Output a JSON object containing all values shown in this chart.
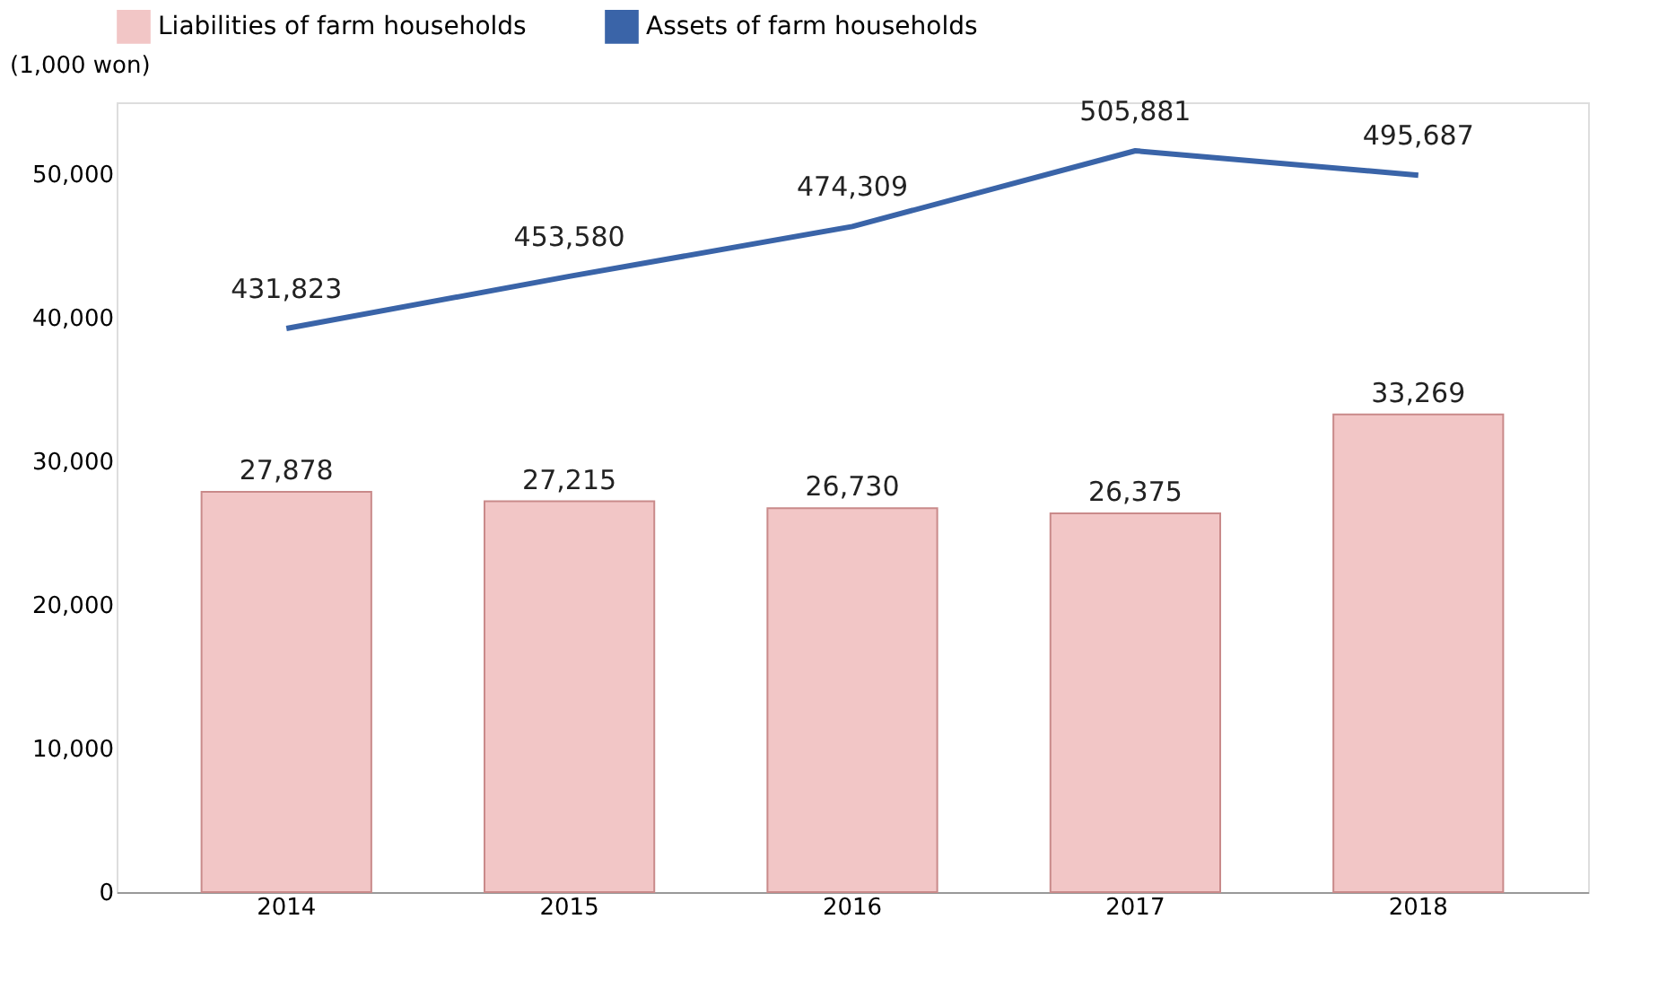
{
  "chart_data": {
    "type": "bar",
    "ylabel": "(1,000 won)",
    "categories": [
      "2014",
      "2015",
      "2016",
      "2017",
      "2018"
    ],
    "series": [
      {
        "name": "Liabilities of farm households",
        "color": "#f2c6c6",
        "values": [
          27878,
          27215,
          26730,
          26375,
          33269
        ],
        "value_labels": [
          "27,878",
          "27,215",
          "26,730",
          "26,375",
          "33,269"
        ]
      },
      {
        "name": "Assets of farm households",
        "type": "line",
        "axis": "y2",
        "color": "#3a64a8",
        "values": [
          431823,
          453580,
          474309,
          505881,
          495687
        ],
        "value_labels": [
          "431,823",
          "453,580",
          "474,309",
          "505,881",
          "495,687"
        ]
      }
    ],
    "ylim": [
      0,
      55000
    ],
    "yticks": [
      0,
      {
        "value": 10000,
        "label": "10,000"
      },
      {
        "value": 20000,
        "label": "20,000"
      },
      {
        "value": 30000,
        "label": "30,000"
      },
      {
        "value": 40000,
        "label": "40,000"
      },
      {
        "value": 50000,
        "label": "50,000"
      }
    ],
    "tick_labels": [
      "x",
      "y"
    ],
    "grid": false,
    "legend": "top",
    "marker": "none",
    "line_style": "solid"
  }
}
